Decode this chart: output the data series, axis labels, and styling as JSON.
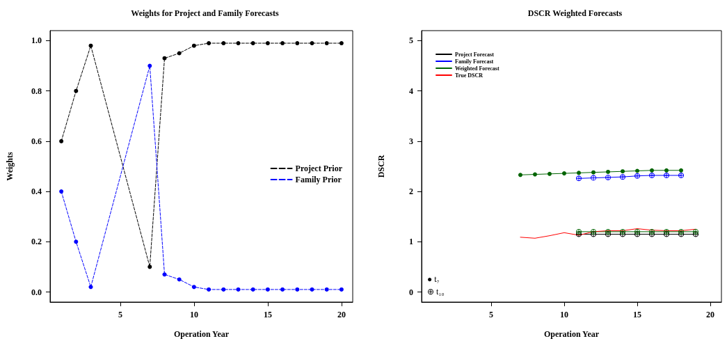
{
  "chart_data": [
    {
      "type": "line",
      "title": "Weights for Project and Family Forecasts",
      "xlabel": "Operation Year",
      "ylabel": "Weights",
      "xlim": [
        0.24,
        20.76
      ],
      "xticks": [
        5,
        10,
        15,
        20
      ],
      "ylim": [
        -0.04,
        1.04
      ],
      "yticks": [
        {
          "value": 0,
          "label": "0.0"
        },
        {
          "value": 0.2,
          "label": "0.2"
        },
        {
          "value": 0.4,
          "label": "0.4"
        },
        {
          "value": 0.6,
          "label": "0.6"
        },
        {
          "value": 0.8,
          "label": "0.8"
        },
        {
          "value": 1,
          "label": "1.0"
        }
      ],
      "grid": false,
      "legend": "right",
      "marker": "circle",
      "line_style": "dashed",
      "x": [
        1,
        2,
        3,
        7,
        8,
        9,
        10,
        11,
        12,
        13,
        14,
        15,
        16,
        17,
        18,
        19,
        20
      ],
      "series": [
        {
          "name": "Project Prior",
          "color": "#000000",
          "values": [
            0.6,
            0.8,
            0.98,
            0.1,
            0.93,
            0.95,
            0.98,
            0.99,
            0.99,
            0.99,
            0.99,
            0.99,
            0.99,
            0.99,
            0.99,
            0.99,
            0.99
          ]
        },
        {
          "name": "Family Prior",
          "color": "#0000ff",
          "values": [
            0.4,
            0.2,
            0.02,
            0.9,
            0.07,
            0.05,
            0.02,
            0.01,
            0.01,
            0.01,
            0.01,
            0.01,
            0.01,
            0.01,
            0.01,
            0.01,
            0.01
          ]
        }
      ]
    },
    {
      "type": "line",
      "title": "DSCR Weighted Forecasts",
      "xlabel": "Operation Year",
      "ylabel": "DSCR",
      "xlim": [
        0.24,
        20.76
      ],
      "xticks": [
        5,
        10,
        15,
        20
      ],
      "ylim": [
        -0.2,
        5.2
      ],
      "yticks": [
        0,
        1,
        2,
        3,
        4,
        5
      ],
      "grid": false,
      "legend": "top left",
      "line_style": "solid",
      "annotations": [
        "● t₇",
        "⊕ t₁₀"
      ],
      "series": [
        {
          "name": "Project Forecast",
          "color": "#000000",
          "marker": "cross",
          "x": [
            11,
            12,
            13,
            14,
            15,
            16,
            17,
            18,
            19
          ],
          "values": [
            1.15,
            1.15,
            1.15,
            1.15,
            1.15,
            1.15,
            1.15,
            1.15,
            1.15
          ]
        },
        {
          "name": "Family Forecast",
          "color": "#0000ff",
          "marker": "cross",
          "x": [
            11,
            12,
            13,
            14,
            15,
            16,
            17,
            18
          ],
          "values": [
            2.26,
            2.27,
            2.28,
            2.29,
            2.31,
            2.32,
            2.32,
            2.32
          ]
        },
        {
          "name": "Weighted Forecast",
          "color": "#006400",
          "marker": "circle",
          "x": [
            7,
            8,
            9,
            10,
            11,
            12,
            13,
            14,
            15,
            16,
            17,
            18
          ],
          "values": [
            2.33,
            2.34,
            2.35,
            2.36,
            2.37,
            2.38,
            2.39,
            2.4,
            2.41,
            2.42,
            2.42,
            2.42
          ]
        },
        {
          "color": "#006400",
          "marker": "cross",
          "x": [
            11,
            12,
            13,
            14,
            15,
            16,
            17,
            18,
            19
          ],
          "values": [
            1.2,
            1.2,
            1.2,
            1.2,
            1.2,
            1.2,
            1.2,
            1.2,
            1.2
          ]
        },
        {
          "name": "True DSCR",
          "color": "#ff0000",
          "marker": "none",
          "x": [
            7,
            8,
            9,
            10,
            11,
            12,
            13,
            14,
            15,
            16,
            17,
            18,
            19
          ],
          "values": [
            1.09,
            1.07,
            1.12,
            1.18,
            1.13,
            1.2,
            1.22,
            1.22,
            1.26,
            1.23,
            1.22,
            1.22,
            1.25
          ]
        }
      ]
    }
  ]
}
